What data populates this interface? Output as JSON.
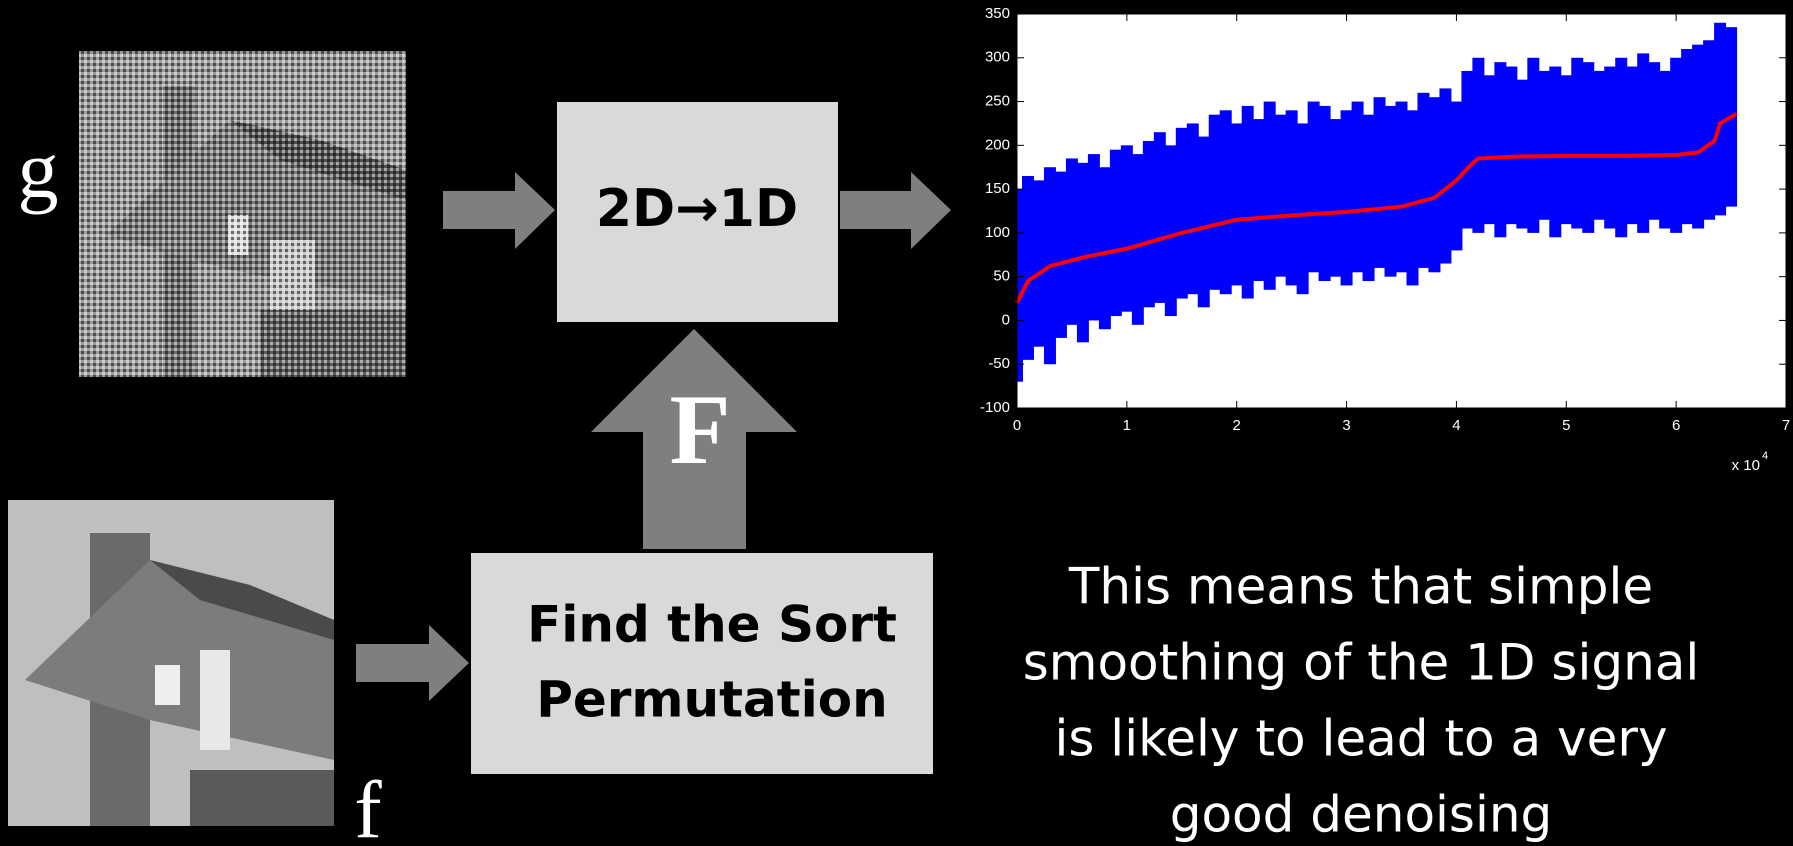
{
  "labels": {
    "g": "g",
    "f": "f",
    "permutation_symbol": "F"
  },
  "boxes": {
    "transform": "2D→1D",
    "sort": [
      "Find the Sort",
      "Permutation"
    ]
  },
  "caption": [
    "This means that simple",
    "smoothing of the 1D signal",
    "is likely to lead to a very",
    "good denoising"
  ],
  "chart_data": {
    "type": "line",
    "xlim": [
      0,
      7
    ],
    "xticks": [
      0,
      1,
      2,
      3,
      4,
      5,
      6,
      7
    ],
    "ylim": [
      -100,
      350
    ],
    "yticks": [
      -100,
      -50,
      0,
      50,
      100,
      150,
      200,
      250,
      300,
      350
    ],
    "x_multiplier": "x 10",
    "x_exponent": "4",
    "series": [
      {
        "type": "range",
        "color": "#0000ff",
        "x": [
          0,
          0.1,
          0.2,
          0.3,
          0.4,
          0.5,
          0.6,
          0.7,
          0.8,
          0.9,
          1,
          1.1,
          1.2,
          1.3,
          1.4,
          1.5,
          1.6,
          1.7,
          1.8,
          1.9,
          2,
          2.1,
          2.2,
          2.3,
          2.4,
          2.5,
          2.6,
          2.7,
          2.8,
          2.9,
          3,
          3.1,
          3.2,
          3.3,
          3.4,
          3.5,
          3.6,
          3.7,
          3.8,
          3.9,
          4,
          4.1,
          4.2,
          4.3,
          4.4,
          4.5,
          4.6,
          4.7,
          4.8,
          4.9,
          5,
          5.1,
          5.2,
          5.3,
          5.4,
          5.5,
          5.6,
          5.7,
          5.8,
          5.9,
          6,
          6.1,
          6.2,
          6.3,
          6.4,
          6.5
        ],
        "lower": [
          -70,
          -45,
          -30,
          -50,
          -20,
          -5,
          -25,
          0,
          -10,
          5,
          10,
          -5,
          15,
          20,
          5,
          25,
          30,
          15,
          35,
          30,
          40,
          25,
          45,
          35,
          50,
          40,
          30,
          55,
          45,
          50,
          40,
          55,
          45,
          60,
          50,
          55,
          40,
          60,
          55,
          65,
          80,
          105,
          100,
          110,
          95,
          110,
          105,
          100,
          115,
          95,
          110,
          105,
          100,
          115,
          105,
          95,
          110,
          100,
          115,
          105,
          100,
          110,
          105,
          115,
          120,
          130
        ],
        "upper": [
          150,
          165,
          160,
          175,
          170,
          185,
          180,
          190,
          175,
          195,
          200,
          190,
          205,
          215,
          200,
          220,
          225,
          210,
          235,
          240,
          225,
          245,
          230,
          250,
          235,
          240,
          225,
          250,
          245,
          230,
          240,
          250,
          235,
          255,
          245,
          250,
          240,
          260,
          255,
          265,
          250,
          285,
          300,
          280,
          295,
          290,
          275,
          300,
          285,
          290,
          280,
          300,
          295,
          285,
          290,
          300,
          290,
          305,
          295,
          285,
          300,
          310,
          315,
          320,
          340,
          335
        ]
      },
      {
        "type": "line",
        "color": "#ff0000",
        "x": [
          0,
          0.1,
          0.3,
          0.6,
          1,
          1.5,
          2,
          2.5,
          3,
          3.5,
          3.8,
          4,
          4.15,
          4.2,
          4.5,
          5,
          5.5,
          6,
          6.2,
          6.35,
          6.4,
          6.55
        ],
        "values": [
          20,
          45,
          62,
          72,
          82,
          100,
          115,
          120,
          124,
          130,
          140,
          160,
          180,
          185,
          187,
          188,
          188,
          189,
          192,
          205,
          225,
          236
        ]
      }
    ]
  }
}
